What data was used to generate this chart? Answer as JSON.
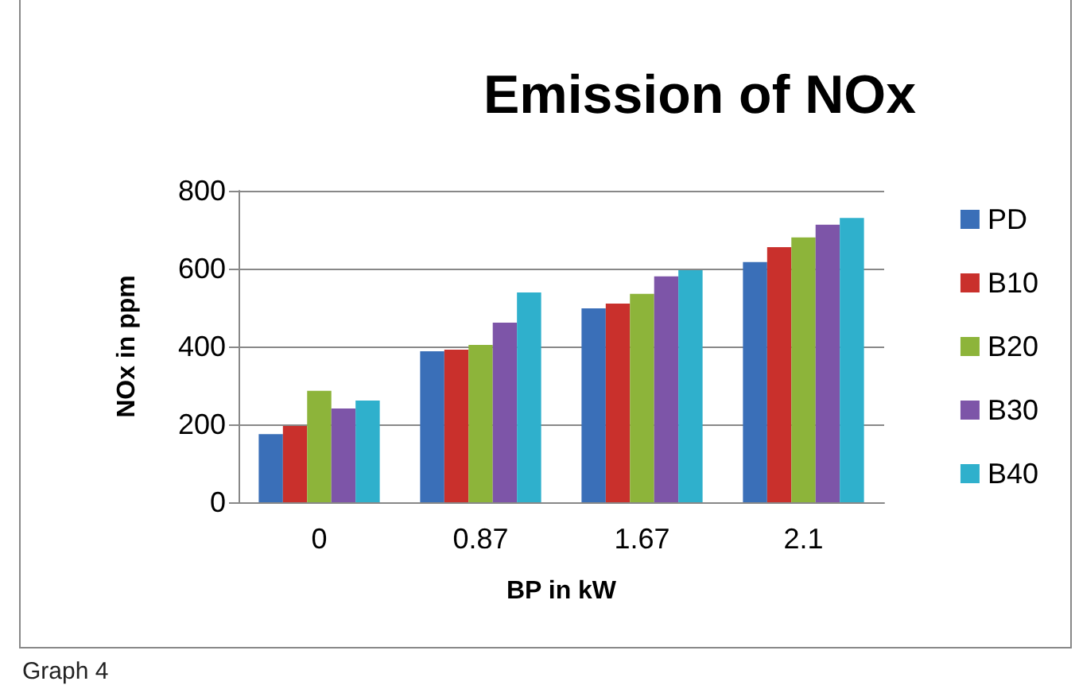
{
  "chart_data": {
    "type": "bar",
    "title": "Emission of NOx",
    "xlabel": "BP in kW",
    "ylabel": "NOx in ppm",
    "categories": [
      "0",
      "0.87",
      "1.67",
      "2.1"
    ],
    "series": [
      {
        "name": "PD",
        "color": "#3a6fb8",
        "values": [
          175,
          388,
          498,
          617
        ]
      },
      {
        "name": "B10",
        "color": "#c9302c",
        "values": [
          196,
          392,
          510,
          655
        ]
      },
      {
        "name": "B20",
        "color": "#8db43a",
        "values": [
          286,
          404,
          535,
          680
        ]
      },
      {
        "name": "B30",
        "color": "#7d55a8",
        "values": [
          241,
          461,
          580,
          713
        ]
      },
      {
        "name": "B40",
        "color": "#2fb0cc",
        "values": [
          261,
          539,
          596,
          730
        ]
      }
    ],
    "ylim": [
      0,
      800
    ],
    "yticks": [
      0,
      200,
      400,
      600,
      800
    ],
    "grid": "y",
    "legend": "right",
    "annotations": [
      "Graph 4"
    ]
  }
}
